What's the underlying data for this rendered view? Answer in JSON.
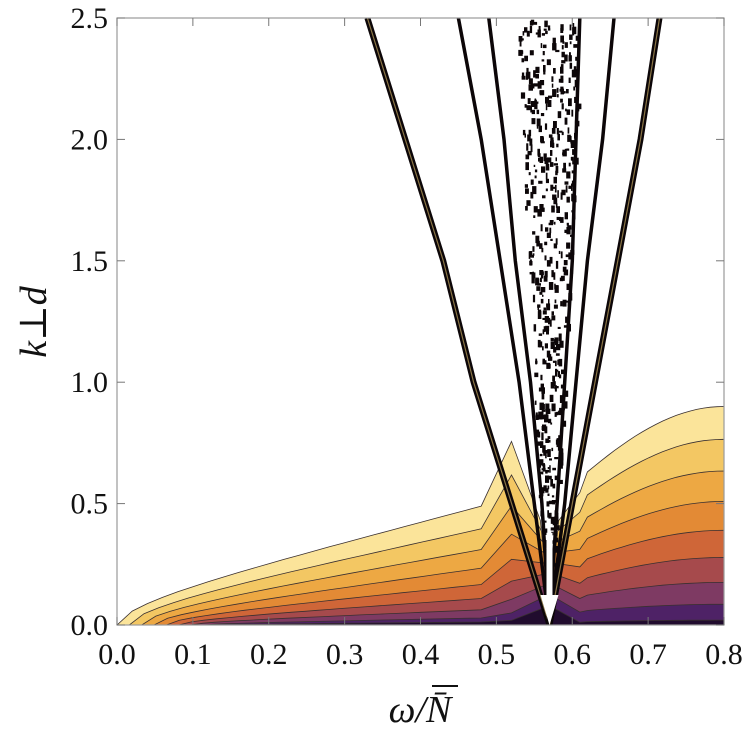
{
  "chart_data": {
    "type": "heatmap",
    "title": "",
    "xlabel": "ω/N̄",
    "ylabel": "k⊥d",
    "xlim": [
      0.0,
      0.8
    ],
    "ylim": [
      0.0,
      2.5
    ],
    "x_ticks": [
      "0.0",
      "0.1",
      "0.2",
      "0.3",
      "0.4",
      "0.5",
      "0.6",
      "0.7",
      "0.8"
    ],
    "y_ticks": [
      "0.0",
      "0.5",
      "1.0",
      "1.5",
      "2.0",
      "2.5"
    ],
    "grid": false,
    "legend": "none",
    "levels": 9,
    "colormap": [
      "#fbe49a",
      "#f3c763",
      "#eda843",
      "#e38a35",
      "#cf6638",
      "#a64a4c",
      "#7e3a63",
      "#4e2266",
      "#210c2e"
    ],
    "singular_frequency": 0.57,
    "arrow": {
      "x": 0.57,
      "y_from": 0.38,
      "y_to": 0.0
    },
    "branches": [
      {
        "name": "left-outer",
        "points": [
          [
            0.33,
            2.5
          ],
          [
            0.38,
            2.0
          ],
          [
            0.43,
            1.5
          ],
          [
            0.47,
            1.0
          ],
          [
            0.52,
            0.5
          ],
          [
            0.57,
            0.0
          ]
        ]
      },
      {
        "name": "left-mid",
        "points": [
          [
            0.45,
            2.5
          ],
          [
            0.48,
            2.0
          ],
          [
            0.505,
            1.5
          ],
          [
            0.53,
            1.0
          ],
          [
            0.55,
            0.5
          ],
          [
            0.57,
            0.0
          ]
        ]
      },
      {
        "name": "left-inner",
        "points": [
          [
            0.49,
            2.5
          ],
          [
            0.51,
            2.0
          ],
          [
            0.525,
            1.5
          ],
          [
            0.545,
            1.0
          ],
          [
            0.56,
            0.5
          ],
          [
            0.57,
            0.0
          ]
        ]
      },
      {
        "name": "right-inner",
        "points": [
          [
            0.61,
            2.5
          ],
          [
            0.605,
            2.0
          ],
          [
            0.6,
            1.5
          ],
          [
            0.59,
            1.0
          ],
          [
            0.58,
            0.5
          ],
          [
            0.57,
            0.0
          ]
        ]
      },
      {
        "name": "right-mid",
        "points": [
          [
            0.655,
            2.5
          ],
          [
            0.64,
            2.0
          ],
          [
            0.62,
            1.5
          ],
          [
            0.605,
            1.0
          ],
          [
            0.59,
            0.5
          ],
          [
            0.57,
            0.0
          ]
        ]
      },
      {
        "name": "right-outer",
        "points": [
          [
            0.715,
            2.5
          ],
          [
            0.69,
            2.0
          ],
          [
            0.66,
            1.5
          ],
          [
            0.63,
            1.0
          ],
          [
            0.6,
            0.5
          ],
          [
            0.57,
            0.0
          ]
        ]
      }
    ]
  }
}
